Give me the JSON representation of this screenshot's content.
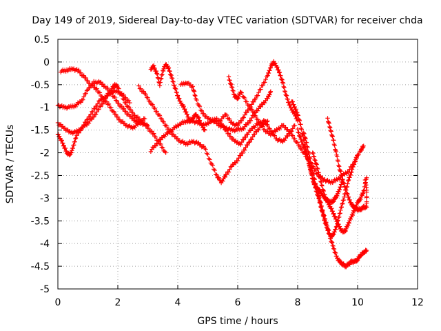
{
  "chart_data": {
    "type": "scatter",
    "title": "Day 149 of 2019, Sidereal Day-to-day VTEC variation (SDTVAR) for receiver chda",
    "xlabel": "GPS time / hours",
    "ylabel": "SDTVAR / TECUs",
    "xlim": [
      0,
      12
    ],
    "ylim": [
      -5,
      0.5
    ],
    "xticks": [
      "0",
      "2",
      "4",
      "6",
      "8",
      "10",
      "12"
    ],
    "yticks": [
      "0.5",
      "0",
      "-0.5",
      "-1",
      "-1.5",
      "-2",
      "-2.5",
      "-3",
      "-3.5",
      "-4",
      "-4.5",
      "-5"
    ],
    "grid": true,
    "marker": "+",
    "color": "#ff0000",
    "series": [
      {
        "points": [
          [
            0.1,
            -0.2
          ],
          [
            0.3,
            -0.18
          ],
          [
            0.5,
            -0.15
          ],
          [
            0.7,
            -0.2
          ],
          [
            0.9,
            -0.35
          ],
          [
            1.1,
            -0.5
          ],
          [
            1.3,
            -0.6
          ],
          [
            1.5,
            -0.8
          ],
          [
            1.7,
            -0.95
          ],
          [
            1.9,
            -1.15
          ],
          [
            2.1,
            -1.3
          ],
          [
            2.3,
            -1.4
          ],
          [
            2.5,
            -1.45
          ],
          [
            2.7,
            -1.35
          ],
          [
            2.9,
            -1.25
          ]
        ]
      },
      {
        "points": [
          [
            0.0,
            -0.95
          ],
          [
            0.2,
            -1.0
          ],
          [
            0.4,
            -1.0
          ],
          [
            0.6,
            -0.95
          ],
          [
            0.8,
            -0.85
          ],
          [
            1.0,
            -0.6
          ],
          [
            1.2,
            -0.45
          ],
          [
            1.4,
            -0.45
          ],
          [
            1.6,
            -0.55
          ],
          [
            1.8,
            -0.7
          ],
          [
            2.0,
            -0.9
          ],
          [
            2.2,
            -1.05
          ],
          [
            2.4,
            -1.2
          ],
          [
            2.6,
            -1.3
          ],
          [
            2.8,
            -1.35
          ],
          [
            3.0,
            -1.4
          ]
        ]
      },
      {
        "points": [
          [
            0.0,
            -1.6
          ],
          [
            0.1,
            -1.7
          ],
          [
            0.2,
            -1.85
          ],
          [
            0.3,
            -2.0
          ],
          [
            0.4,
            -2.05
          ],
          [
            0.5,
            -1.9
          ],
          [
            0.6,
            -1.65
          ],
          [
            0.8,
            -1.45
          ],
          [
            1.0,
            -1.25
          ],
          [
            1.2,
            -1.05
          ],
          [
            1.4,
            -0.85
          ],
          [
            1.6,
            -0.75
          ],
          [
            1.8,
            -0.65
          ],
          [
            2.0,
            -0.65
          ],
          [
            2.2,
            -0.75
          ],
          [
            2.4,
            -0.9
          ]
        ]
      },
      {
        "points": [
          [
            0.0,
            -1.35
          ],
          [
            0.2,
            -1.45
          ],
          [
            0.4,
            -1.55
          ],
          [
            0.6,
            -1.55
          ],
          [
            0.8,
            -1.45
          ],
          [
            1.0,
            -1.35
          ],
          [
            1.2,
            -1.2
          ],
          [
            1.4,
            -1.0
          ],
          [
            1.6,
            -0.8
          ],
          [
            1.8,
            -0.6
          ],
          [
            1.9,
            -0.5
          ],
          [
            2.0,
            -0.55
          ],
          [
            2.2,
            -0.85
          ],
          [
            2.4,
            -1.05
          ],
          [
            2.6,
            -1.2
          ],
          [
            2.8,
            -1.3
          ],
          [
            3.0,
            -1.45
          ],
          [
            3.2,
            -1.6
          ],
          [
            3.4,
            -1.8
          ],
          [
            3.6,
            -2.0
          ]
        ]
      },
      {
        "points": [
          [
            2.7,
            -0.55
          ],
          [
            2.9,
            -0.7
          ],
          [
            3.1,
            -0.9
          ],
          [
            3.3,
            -1.1
          ],
          [
            3.5,
            -1.3
          ],
          [
            3.7,
            -1.5
          ],
          [
            3.9,
            -1.65
          ],
          [
            4.1,
            -1.75
          ],
          [
            4.3,
            -1.8
          ],
          [
            4.5,
            -1.75
          ],
          [
            4.7,
            -1.8
          ],
          [
            4.9,
            -1.9
          ],
          [
            5.1,
            -2.2
          ],
          [
            5.3,
            -2.5
          ],
          [
            5.45,
            -2.65
          ],
          [
            5.6,
            -2.5
          ],
          [
            5.8,
            -2.3
          ],
          [
            6.0,
            -2.15
          ],
          [
            6.2,
            -1.95
          ],
          [
            6.4,
            -1.75
          ],
          [
            6.6,
            -1.55
          ],
          [
            6.8,
            -1.4
          ],
          [
            7.0,
            -1.3
          ]
        ]
      },
      {
        "points": [
          [
            3.1,
            -1.95
          ],
          [
            3.3,
            -1.8
          ],
          [
            3.5,
            -1.65
          ],
          [
            3.7,
            -1.55
          ],
          [
            3.9,
            -1.45
          ],
          [
            4.1,
            -1.35
          ],
          [
            4.3,
            -1.3
          ],
          [
            4.5,
            -1.3
          ],
          [
            4.7,
            -1.35
          ],
          [
            4.9,
            -1.4
          ],
          [
            5.1,
            -1.3
          ],
          [
            5.3,
            -1.25
          ],
          [
            5.5,
            -1.4
          ],
          [
            5.7,
            -1.6
          ],
          [
            5.9,
            -1.75
          ],
          [
            6.1,
            -1.8
          ],
          [
            6.3,
            -1.6
          ],
          [
            6.5,
            -1.45
          ],
          [
            6.7,
            -1.35
          ],
          [
            6.9,
            -1.3
          ],
          [
            7.1,
            -1.5
          ],
          [
            7.3,
            -1.7
          ],
          [
            7.5,
            -1.75
          ],
          [
            7.7,
            -1.6
          ],
          [
            7.9,
            -1.4
          ]
        ]
      },
      {
        "points": [
          [
            3.1,
            -0.15
          ],
          [
            3.2,
            -0.1
          ],
          [
            3.3,
            -0.25
          ],
          [
            3.4,
            -0.5
          ],
          [
            3.5,
            -0.2
          ],
          [
            3.6,
            -0.05
          ],
          [
            3.7,
            -0.15
          ],
          [
            3.8,
            -0.35
          ],
          [
            3.9,
            -0.55
          ],
          [
            4.0,
            -0.75
          ],
          [
            4.1,
            -0.9
          ],
          [
            4.2,
            -1.0
          ],
          [
            4.3,
            -1.15
          ],
          [
            4.4,
            -1.3
          ],
          [
            4.5,
            -1.25
          ],
          [
            4.6,
            -1.15
          ],
          [
            4.7,
            -1.25
          ],
          [
            4.8,
            -1.4
          ],
          [
            4.9,
            -1.5
          ]
        ]
      },
      {
        "points": [
          [
            4.1,
            -0.5
          ],
          [
            4.3,
            -0.45
          ],
          [
            4.5,
            -0.55
          ],
          [
            4.6,
            -0.8
          ],
          [
            4.8,
            -1.1
          ],
          [
            5.0,
            -1.25
          ],
          [
            5.2,
            -1.3
          ],
          [
            5.4,
            -1.4
          ],
          [
            5.6,
            -1.45
          ],
          [
            5.8,
            -1.5
          ],
          [
            6.0,
            -1.5
          ],
          [
            6.2,
            -1.45
          ],
          [
            6.4,
            -1.3
          ],
          [
            6.6,
            -1.1
          ],
          [
            6.8,
            -0.95
          ],
          [
            7.0,
            -0.8
          ],
          [
            7.1,
            -0.65
          ]
        ]
      },
      {
        "points": [
          [
            5.4,
            -1.3
          ],
          [
            5.6,
            -1.15
          ],
          [
            5.8,
            -1.35
          ],
          [
            6.0,
            -1.4
          ],
          [
            6.2,
            -1.2
          ],
          [
            6.4,
            -1.0
          ],
          [
            6.6,
            -0.8
          ],
          [
            6.8,
            -0.55
          ],
          [
            7.0,
            -0.3
          ],
          [
            7.1,
            -0.1
          ],
          [
            7.2,
            0.0
          ],
          [
            7.3,
            -0.1
          ],
          [
            7.4,
            -0.25
          ],
          [
            7.5,
            -0.45
          ],
          [
            7.6,
            -0.7
          ],
          [
            7.7,
            -0.9
          ],
          [
            7.8,
            -1.05
          ],
          [
            7.9,
            -1.15
          ],
          [
            8.0,
            -1.3
          ]
        ]
      },
      {
        "points": [
          [
            5.7,
            -0.35
          ],
          [
            5.8,
            -0.55
          ],
          [
            5.9,
            -0.75
          ],
          [
            6.0,
            -0.8
          ],
          [
            6.1,
            -0.65
          ],
          [
            6.3,
            -0.9
          ],
          [
            6.5,
            -1.1
          ],
          [
            6.7,
            -1.3
          ],
          [
            6.9,
            -1.5
          ],
          [
            7.1,
            -1.6
          ],
          [
            7.3,
            -1.5
          ],
          [
            7.5,
            -1.4
          ],
          [
            7.7,
            -1.5
          ],
          [
            7.9,
            -1.7
          ],
          [
            8.1,
            -1.9
          ],
          [
            8.3,
            -2.1
          ],
          [
            8.5,
            -2.3
          ],
          [
            8.7,
            -2.5
          ],
          [
            8.9,
            -2.6
          ],
          [
            9.1,
            -2.65
          ],
          [
            9.3,
            -2.6
          ],
          [
            9.5,
            -2.5
          ],
          [
            9.7,
            -2.4
          ],
          [
            9.9,
            -2.2
          ],
          [
            10.1,
            -1.95
          ],
          [
            10.2,
            -1.85
          ]
        ]
      },
      {
        "points": [
          [
            7.8,
            -0.85
          ],
          [
            7.9,
            -1.0
          ],
          [
            8.0,
            -1.15
          ],
          [
            8.1,
            -1.4
          ],
          [
            8.2,
            -1.7
          ],
          [
            8.3,
            -2.0
          ],
          [
            8.4,
            -2.3
          ],
          [
            8.5,
            -2.55
          ],
          [
            8.6,
            -2.8
          ],
          [
            8.7,
            -3.0
          ],
          [
            8.8,
            -3.25
          ],
          [
            8.9,
            -3.5
          ],
          [
            9.0,
            -3.7
          ],
          [
            9.1,
            -3.85
          ],
          [
            9.2,
            -3.8
          ],
          [
            9.3,
            -3.6
          ],
          [
            9.4,
            -3.35
          ],
          [
            9.5,
            -3.1
          ],
          [
            9.6,
            -2.85
          ],
          [
            9.7,
            -2.6
          ],
          [
            9.8,
            -2.4
          ],
          [
            9.9,
            -2.2
          ],
          [
            10.0,
            -2.05
          ]
        ]
      },
      {
        "points": [
          [
            8.2,
            -1.55
          ],
          [
            8.3,
            -1.8
          ],
          [
            8.4,
            -2.1
          ],
          [
            8.5,
            -2.4
          ],
          [
            8.6,
            -2.7
          ],
          [
            8.7,
            -2.95
          ],
          [
            8.8,
            -3.2
          ],
          [
            8.9,
            -3.45
          ],
          [
            9.0,
            -3.65
          ],
          [
            9.1,
            -3.9
          ],
          [
            9.2,
            -4.1
          ],
          [
            9.3,
            -4.3
          ],
          [
            9.4,
            -4.4
          ],
          [
            9.5,
            -4.45
          ],
          [
            9.6,
            -4.5
          ],
          [
            9.7,
            -4.45
          ],
          [
            9.8,
            -4.4
          ],
          [
            9.9,
            -4.4
          ],
          [
            10.0,
            -4.35
          ],
          [
            10.1,
            -4.25
          ],
          [
            10.2,
            -4.2
          ],
          [
            10.3,
            -4.15
          ]
        ]
      },
      {
        "points": [
          [
            8.5,
            -2.0
          ],
          [
            8.6,
            -2.2
          ],
          [
            8.7,
            -2.45
          ],
          [
            8.8,
            -2.7
          ],
          [
            8.9,
            -2.95
          ],
          [
            9.0,
            -3.1
          ],
          [
            9.1,
            -3.2
          ],
          [
            9.2,
            -3.35
          ],
          [
            9.3,
            -3.5
          ],
          [
            9.4,
            -3.65
          ],
          [
            9.5,
            -3.75
          ],
          [
            9.6,
            -3.7
          ],
          [
            9.7,
            -3.55
          ],
          [
            9.8,
            -3.4
          ],
          [
            9.9,
            -3.25
          ],
          [
            10.0,
            -3.1
          ],
          [
            10.1,
            -3.0
          ],
          [
            10.2,
            -2.85
          ],
          [
            10.3,
            -2.55
          ]
        ]
      },
      {
        "points": [
          [
            9.0,
            -1.25
          ],
          [
            9.1,
            -1.5
          ],
          [
            9.2,
            -1.75
          ],
          [
            9.3,
            -2.05
          ],
          [
            9.4,
            -2.35
          ],
          [
            9.5,
            -2.6
          ],
          [
            9.6,
            -2.8
          ],
          [
            9.7,
            -3.0
          ],
          [
            9.8,
            -3.15
          ],
          [
            9.9,
            -3.2
          ],
          [
            10.0,
            -3.25
          ],
          [
            10.1,
            -3.25
          ],
          [
            10.2,
            -3.2
          ],
          [
            10.3,
            -3.2
          ],
          [
            10.3,
            -2.8
          ],
          [
            10.25,
            -2.6
          ]
        ]
      },
      {
        "points": [
          [
            8.0,
            -1.5
          ],
          [
            8.1,
            -1.7
          ],
          [
            8.2,
            -1.85
          ],
          [
            8.3,
            -2.05
          ],
          [
            8.4,
            -2.3
          ],
          [
            8.5,
            -2.6
          ],
          [
            8.6,
            -2.75
          ],
          [
            8.7,
            -2.8
          ],
          [
            8.8,
            -2.9
          ],
          [
            8.9,
            -3.0
          ],
          [
            9.0,
            -3.05
          ],
          [
            9.1,
            -3.1
          ],
          [
            9.2,
            -3.05
          ],
          [
            9.3,
            -2.95
          ],
          [
            9.4,
            -2.8
          ],
          [
            9.5,
            -2.6
          ]
        ]
      }
    ]
  }
}
